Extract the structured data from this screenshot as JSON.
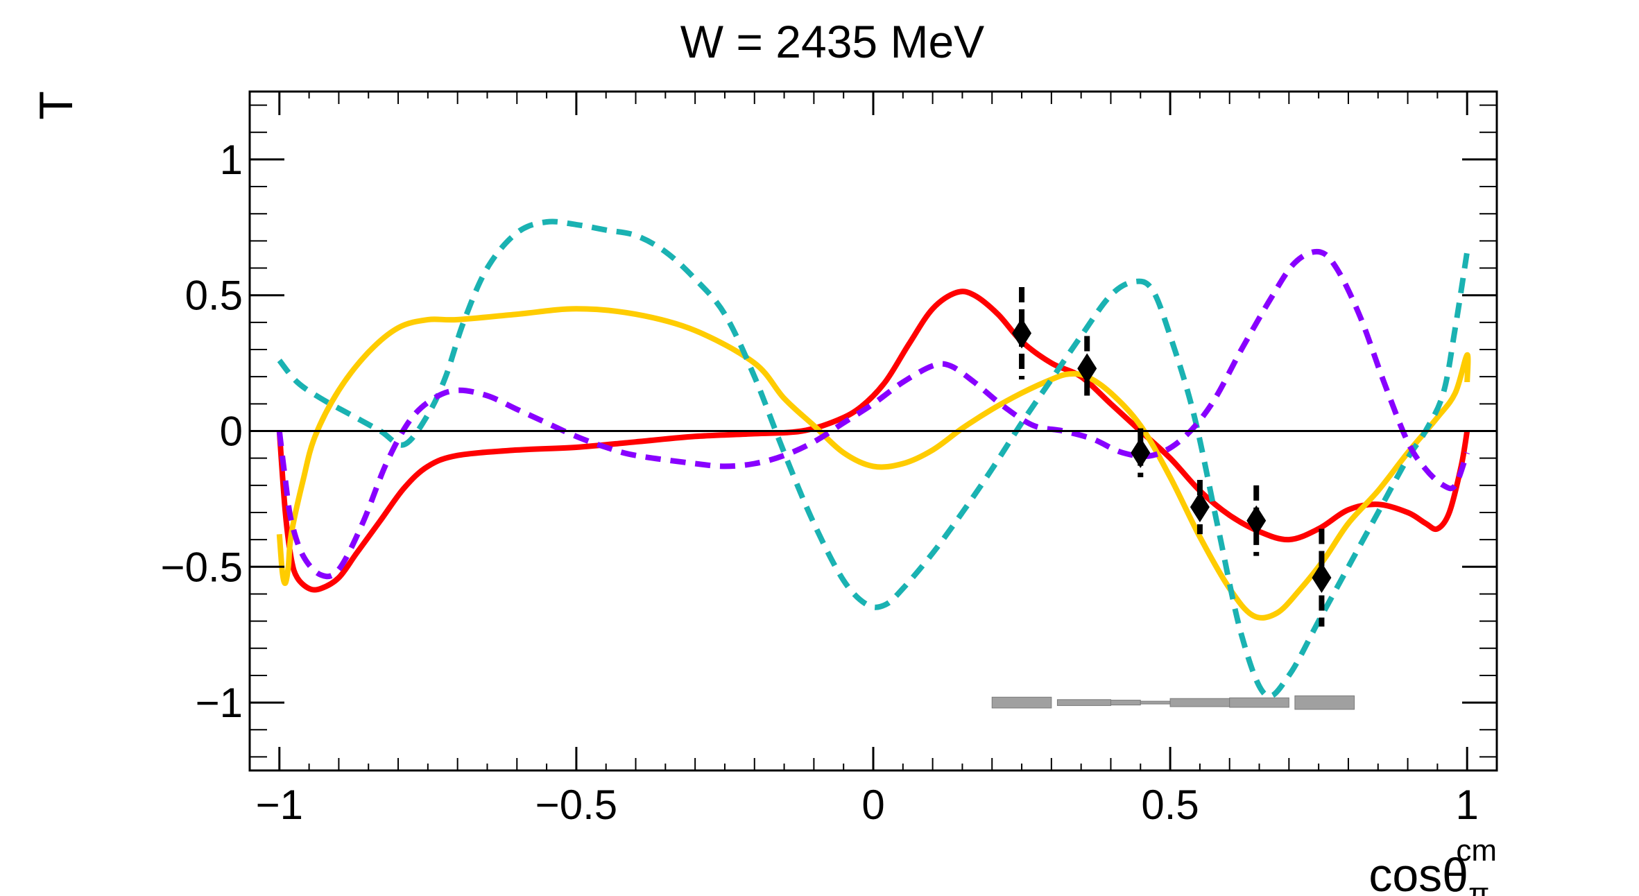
{
  "chart_data": {
    "type": "line",
    "title": "W = 2435 MeV",
    "xlabel": {
      "main": "cosθ",
      "sub": "π",
      "sup": "cm"
    },
    "ylabel": "T",
    "xlim": [
      -1.05,
      1.05
    ],
    "ylim": [
      -1.25,
      1.25
    ],
    "x_ticks": [
      -1,
      -0.5,
      0,
      0.5,
      1
    ],
    "x_tick_labels": [
      "−1",
      "−0.5",
      "0",
      "0.5",
      "1"
    ],
    "y_ticks": [
      -1,
      -0.5,
      0,
      0.5,
      1
    ],
    "y_tick_labels": [
      "−1",
      "−0.5",
      "0",
      "0.5",
      "1"
    ],
    "grid": false,
    "reference_line_y": 0,
    "series": [
      {
        "name": "model-red",
        "color": "#ff0000",
        "dashed": false,
        "points": [
          [
            -1.0,
            0.0
          ],
          [
            -0.99,
            -0.3
          ],
          [
            -0.98,
            -0.47
          ],
          [
            -0.97,
            -0.54
          ],
          [
            -0.95,
            -0.58
          ],
          [
            -0.93,
            -0.58
          ],
          [
            -0.9,
            -0.54
          ],
          [
            -0.87,
            -0.45
          ],
          [
            -0.83,
            -0.33
          ],
          [
            -0.79,
            -0.21
          ],
          [
            -0.75,
            -0.13
          ],
          [
            -0.7,
            -0.09
          ],
          [
            -0.6,
            -0.07
          ],
          [
            -0.5,
            -0.06
          ],
          [
            -0.4,
            -0.04
          ],
          [
            -0.3,
            -0.02
          ],
          [
            -0.2,
            -0.01
          ],
          [
            -0.12,
            0.0
          ],
          [
            -0.06,
            0.04
          ],
          [
            -0.02,
            0.09
          ],
          [
            0.02,
            0.18
          ],
          [
            0.06,
            0.32
          ],
          [
            0.1,
            0.45
          ],
          [
            0.14,
            0.51
          ],
          [
            0.17,
            0.5
          ],
          [
            0.21,
            0.43
          ],
          [
            0.25,
            0.33
          ],
          [
            0.3,
            0.25
          ],
          [
            0.35,
            0.2
          ],
          [
            0.4,
            0.1
          ],
          [
            0.45,
            0.0
          ],
          [
            0.5,
            -0.1
          ],
          [
            0.55,
            -0.22
          ],
          [
            0.6,
            -0.31
          ],
          [
            0.65,
            -0.37
          ],
          [
            0.7,
            -0.4
          ],
          [
            0.75,
            -0.36
          ],
          [
            0.8,
            -0.29
          ],
          [
            0.85,
            -0.27
          ],
          [
            0.9,
            -0.3
          ],
          [
            0.93,
            -0.34
          ],
          [
            0.95,
            -0.36
          ],
          [
            0.97,
            -0.3
          ],
          [
            0.99,
            -0.13
          ],
          [
            1.0,
            0.0
          ]
        ]
      },
      {
        "name": "model-yellow",
        "color": "#ffcc00",
        "dashed": false,
        "points": [
          [
            -1.0,
            -0.38
          ],
          [
            -0.995,
            -0.52
          ],
          [
            -0.99,
            -0.56
          ],
          [
            -0.985,
            -0.5
          ],
          [
            -0.98,
            -0.38
          ],
          [
            -0.96,
            -0.18
          ],
          [
            -0.94,
            -0.02
          ],
          [
            -0.9,
            0.15
          ],
          [
            -0.85,
            0.29
          ],
          [
            -0.8,
            0.38
          ],
          [
            -0.75,
            0.41
          ],
          [
            -0.7,
            0.41
          ],
          [
            -0.6,
            0.43
          ],
          [
            -0.5,
            0.45
          ],
          [
            -0.4,
            0.43
          ],
          [
            -0.3,
            0.37
          ],
          [
            -0.2,
            0.25
          ],
          [
            -0.15,
            0.12
          ],
          [
            -0.1,
            0.02
          ],
          [
            -0.05,
            -0.08
          ],
          [
            0.0,
            -0.13
          ],
          [
            0.05,
            -0.12
          ],
          [
            0.1,
            -0.07
          ],
          [
            0.15,
            0.01
          ],
          [
            0.2,
            0.08
          ],
          [
            0.25,
            0.14
          ],
          [
            0.3,
            0.19
          ],
          [
            0.33,
            0.21
          ],
          [
            0.36,
            0.2
          ],
          [
            0.4,
            0.14
          ],
          [
            0.45,
            0.02
          ],
          [
            0.5,
            -0.17
          ],
          [
            0.55,
            -0.39
          ],
          [
            0.6,
            -0.58
          ],
          [
            0.64,
            -0.68
          ],
          [
            0.68,
            -0.67
          ],
          [
            0.72,
            -0.58
          ],
          [
            0.76,
            -0.47
          ],
          [
            0.8,
            -0.34
          ],
          [
            0.85,
            -0.22
          ],
          [
            0.9,
            -0.08
          ],
          [
            0.95,
            0.05
          ],
          [
            0.98,
            0.14
          ],
          [
            1.0,
            0.28
          ],
          [
            1.0,
            0.18
          ]
        ]
      },
      {
        "name": "model-cyan-dashed",
        "color": "#1ab2b2",
        "dashed": true,
        "points": [
          [
            -1.0,
            0.26
          ],
          [
            -0.97,
            0.18
          ],
          [
            -0.93,
            0.12
          ],
          [
            -0.88,
            0.06
          ],
          [
            -0.83,
            0.0
          ],
          [
            -0.79,
            -0.05
          ],
          [
            -0.75,
            0.06
          ],
          [
            -0.72,
            0.2
          ],
          [
            -0.69,
            0.4
          ],
          [
            -0.65,
            0.6
          ],
          [
            -0.6,
            0.73
          ],
          [
            -0.55,
            0.77
          ],
          [
            -0.5,
            0.76
          ],
          [
            -0.45,
            0.74
          ],
          [
            -0.4,
            0.72
          ],
          [
            -0.35,
            0.66
          ],
          [
            -0.3,
            0.56
          ],
          [
            -0.25,
            0.43
          ],
          [
            -0.2,
            0.2
          ],
          [
            -0.15,
            -0.08
          ],
          [
            -0.1,
            -0.34
          ],
          [
            -0.05,
            -0.55
          ],
          [
            -0.01,
            -0.64
          ],
          [
            0.02,
            -0.64
          ],
          [
            0.05,
            -0.58
          ],
          [
            0.1,
            -0.45
          ],
          [
            0.15,
            -0.3
          ],
          [
            0.2,
            -0.14
          ],
          [
            0.25,
            0.03
          ],
          [
            0.3,
            0.19
          ],
          [
            0.35,
            0.35
          ],
          [
            0.4,
            0.5
          ],
          [
            0.44,
            0.55
          ],
          [
            0.47,
            0.52
          ],
          [
            0.5,
            0.35
          ],
          [
            0.54,
            0.06
          ],
          [
            0.58,
            -0.35
          ],
          [
            0.62,
            -0.75
          ],
          [
            0.66,
            -0.97
          ],
          [
            0.7,
            -0.9
          ],
          [
            0.75,
            -0.7
          ],
          [
            0.8,
            -0.5
          ],
          [
            0.85,
            -0.3
          ],
          [
            0.9,
            -0.1
          ],
          [
            0.93,
            0.0
          ],
          [
            0.96,
            0.14
          ],
          [
            0.98,
            0.38
          ],
          [
            1.0,
            0.66
          ]
        ]
      },
      {
        "name": "model-violet-dashed",
        "color": "#8800ff",
        "dashed": true,
        "points": [
          [
            -1.0,
            0.0
          ],
          [
            -0.99,
            -0.18
          ],
          [
            -0.98,
            -0.33
          ],
          [
            -0.96,
            -0.46
          ],
          [
            -0.93,
            -0.53
          ],
          [
            -0.9,
            -0.51
          ],
          [
            -0.86,
            -0.34
          ],
          [
            -0.82,
            -0.12
          ],
          [
            -0.78,
            0.04
          ],
          [
            -0.74,
            0.12
          ],
          [
            -0.7,
            0.15
          ],
          [
            -0.65,
            0.13
          ],
          [
            -0.6,
            0.08
          ],
          [
            -0.55,
            0.03
          ],
          [
            -0.5,
            -0.02
          ],
          [
            -0.45,
            -0.06
          ],
          [
            -0.4,
            -0.09
          ],
          [
            -0.3,
            -0.12
          ],
          [
            -0.25,
            -0.13
          ],
          [
            -0.2,
            -0.12
          ],
          [
            -0.15,
            -0.09
          ],
          [
            -0.1,
            -0.04
          ],
          [
            -0.05,
            0.03
          ],
          [
            0.0,
            0.1
          ],
          [
            0.05,
            0.18
          ],
          [
            0.1,
            0.24
          ],
          [
            0.13,
            0.24
          ],
          [
            0.17,
            0.18
          ],
          [
            0.22,
            0.09
          ],
          [
            0.27,
            0.02
          ],
          [
            0.32,
            0.0
          ],
          [
            0.37,
            -0.03
          ],
          [
            0.42,
            -0.08
          ],
          [
            0.47,
            -0.09
          ],
          [
            0.52,
            -0.03
          ],
          [
            0.57,
            0.1
          ],
          [
            0.62,
            0.3
          ],
          [
            0.67,
            0.49
          ],
          [
            0.71,
            0.62
          ],
          [
            0.75,
            0.66
          ],
          [
            0.78,
            0.6
          ],
          [
            0.82,
            0.42
          ],
          [
            0.86,
            0.18
          ],
          [
            0.9,
            -0.04
          ],
          [
            0.93,
            -0.14
          ],
          [
            0.96,
            -0.2
          ],
          [
            0.98,
            -0.2
          ],
          [
            1.0,
            -0.08
          ]
        ]
      }
    ],
    "data_points": {
      "marker": "diamond",
      "color": "#000000",
      "points": [
        {
          "x": 0.25,
          "y": 0.36,
          "err": 0.17
        },
        {
          "x": 0.36,
          "y": 0.23,
          "err": 0.12
        },
        {
          "x": 0.45,
          "y": -0.08,
          "err": 0.09
        },
        {
          "x": 0.55,
          "y": -0.28,
          "err": 0.1
        },
        {
          "x": 0.645,
          "y": -0.33,
          "err": 0.13
        },
        {
          "x": 0.755,
          "y": -0.54,
          "err": 0.18
        }
      ]
    },
    "systematic_bands": [
      {
        "x0": 0.2,
        "x1": 0.3,
        "height": 0.04
      },
      {
        "x0": 0.31,
        "x1": 0.4,
        "height": 0.022
      },
      {
        "x0": 0.4,
        "x1": 0.45,
        "height": 0.018
      },
      {
        "x0": 0.45,
        "x1": 0.5,
        "height": 0.01
      },
      {
        "x0": 0.5,
        "x1": 0.6,
        "height": 0.03
      },
      {
        "x0": 0.6,
        "x1": 0.7,
        "height": 0.035
      },
      {
        "x0": 0.71,
        "x1": 0.81,
        "height": 0.05
      }
    ]
  }
}
